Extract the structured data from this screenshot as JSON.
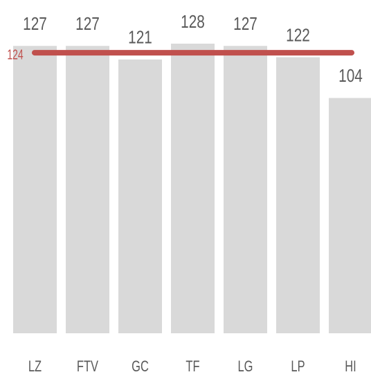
{
  "chart_data": {
    "type": "bar",
    "categories": [
      "LZ",
      "FTV",
      "GC",
      "TF",
      "LG",
      "LP",
      "HI"
    ],
    "values": [
      127,
      127,
      121,
      128,
      127,
      122,
      104
    ],
    "color": "#d9d9d9",
    "ylim": [
      0,
      128
    ],
    "reference_line": {
      "value": 124,
      "color": "#c0504d"
    }
  }
}
